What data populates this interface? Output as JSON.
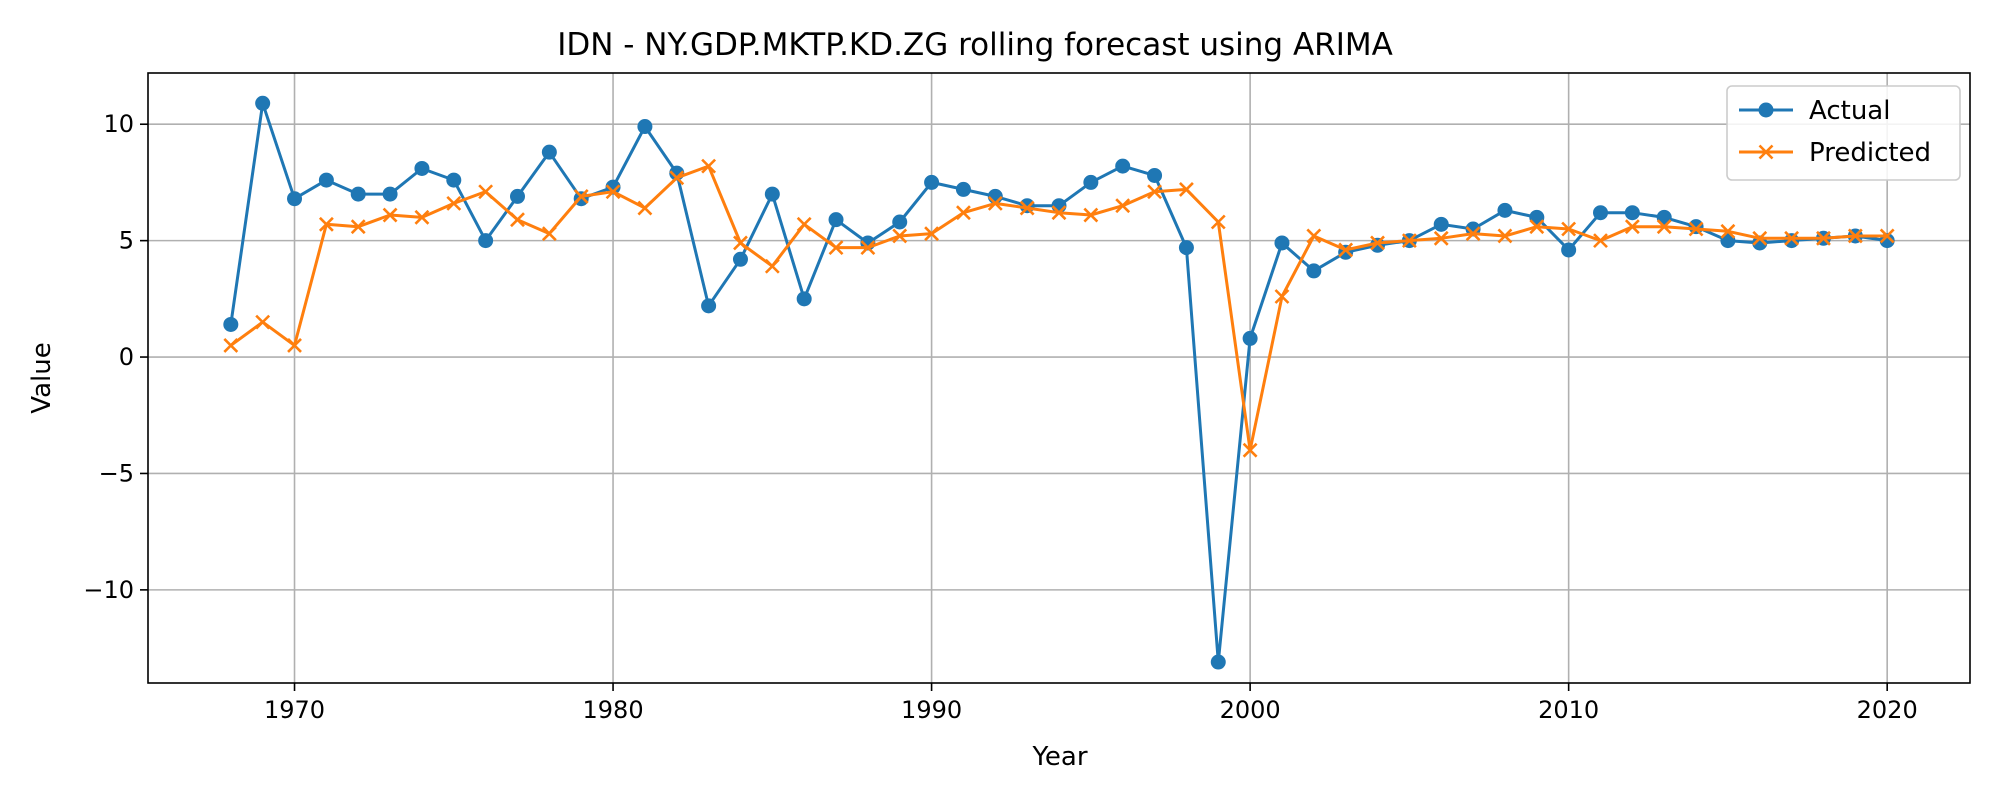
{
  "chart_data": {
    "type": "line",
    "title": "IDN - NY.GDP.MKTP.KD.ZG rolling forecast using ARIMA",
    "xlabel": "Year",
    "ylabel": "Value",
    "xlim": [
      1965.4,
      2022.6
    ],
    "ylim": [
      -14.0,
      12.2
    ],
    "xticks": [
      1970,
      1980,
      1990,
      2000,
      2010,
      2020
    ],
    "yticks": [
      -10,
      -5,
      0,
      5,
      10
    ],
    "xtick_labels": [
      "1970",
      "1980",
      "1990",
      "2000",
      "2010",
      "2020"
    ],
    "ytick_labels": [
      "−10",
      "−5",
      "0",
      "5",
      "10"
    ],
    "grid": true,
    "legend_position": "top-right",
    "x": [
      1968,
      1969,
      1970,
      1971,
      1972,
      1973,
      1974,
      1975,
      1976,
      1977,
      1978,
      1979,
      1980,
      1981,
      1982,
      1983,
      1984,
      1985,
      1986,
      1987,
      1988,
      1989,
      1990,
      1991,
      1992,
      1993,
      1994,
      1995,
      1996,
      1997,
      1998,
      1999,
      2000,
      2001,
      2002,
      2003,
      2004,
      2005,
      2006,
      2007,
      2008,
      2009,
      2010,
      2011,
      2012,
      2013,
      2014,
      2015,
      2016,
      2017,
      2018,
      2019,
      2020
    ],
    "series": [
      {
        "name": "Actual",
        "color": "#1f77b4",
        "marker": "circle",
        "values": [
          1.4,
          10.9,
          6.8,
          7.6,
          7.0,
          7.0,
          8.1,
          7.6,
          5.0,
          6.9,
          8.8,
          6.8,
          7.3,
          9.9,
          7.9,
          2.2,
          4.2,
          7.0,
          2.5,
          5.9,
          4.9,
          5.8,
          7.5,
          7.2,
          6.9,
          6.5,
          6.5,
          7.5,
          8.2,
          7.8,
          4.7,
          -13.1,
          0.8,
          4.9,
          3.7,
          4.5,
          4.8,
          5.0,
          5.7,
          5.5,
          6.3,
          6.0,
          4.6,
          6.2,
          6.2,
          6.0,
          5.6,
          5.0,
          4.9,
          5.0,
          5.1,
          5.2,
          5.0
        ]
      },
      {
        "name": "Predicted",
        "color": "#ff7f0e",
        "marker": "x",
        "values": [
          0.5,
          1.5,
          0.5,
          5.7,
          5.6,
          6.1,
          6.0,
          6.6,
          7.1,
          5.9,
          5.3,
          6.9,
          7.1,
          6.4,
          7.7,
          8.2,
          4.9,
          3.9,
          5.7,
          4.7,
          4.7,
          5.2,
          5.3,
          6.2,
          6.6,
          6.4,
          6.2,
          6.1,
          6.5,
          7.1,
          7.2,
          5.8,
          -4.0,
          2.6,
          5.2,
          4.6,
          4.9,
          5.0,
          5.1,
          5.3,
          5.2,
          5.6,
          5.5,
          5.0,
          5.6,
          5.6,
          5.5,
          5.4,
          5.1,
          5.1,
          5.1,
          5.2,
          5.2
        ]
      }
    ]
  }
}
